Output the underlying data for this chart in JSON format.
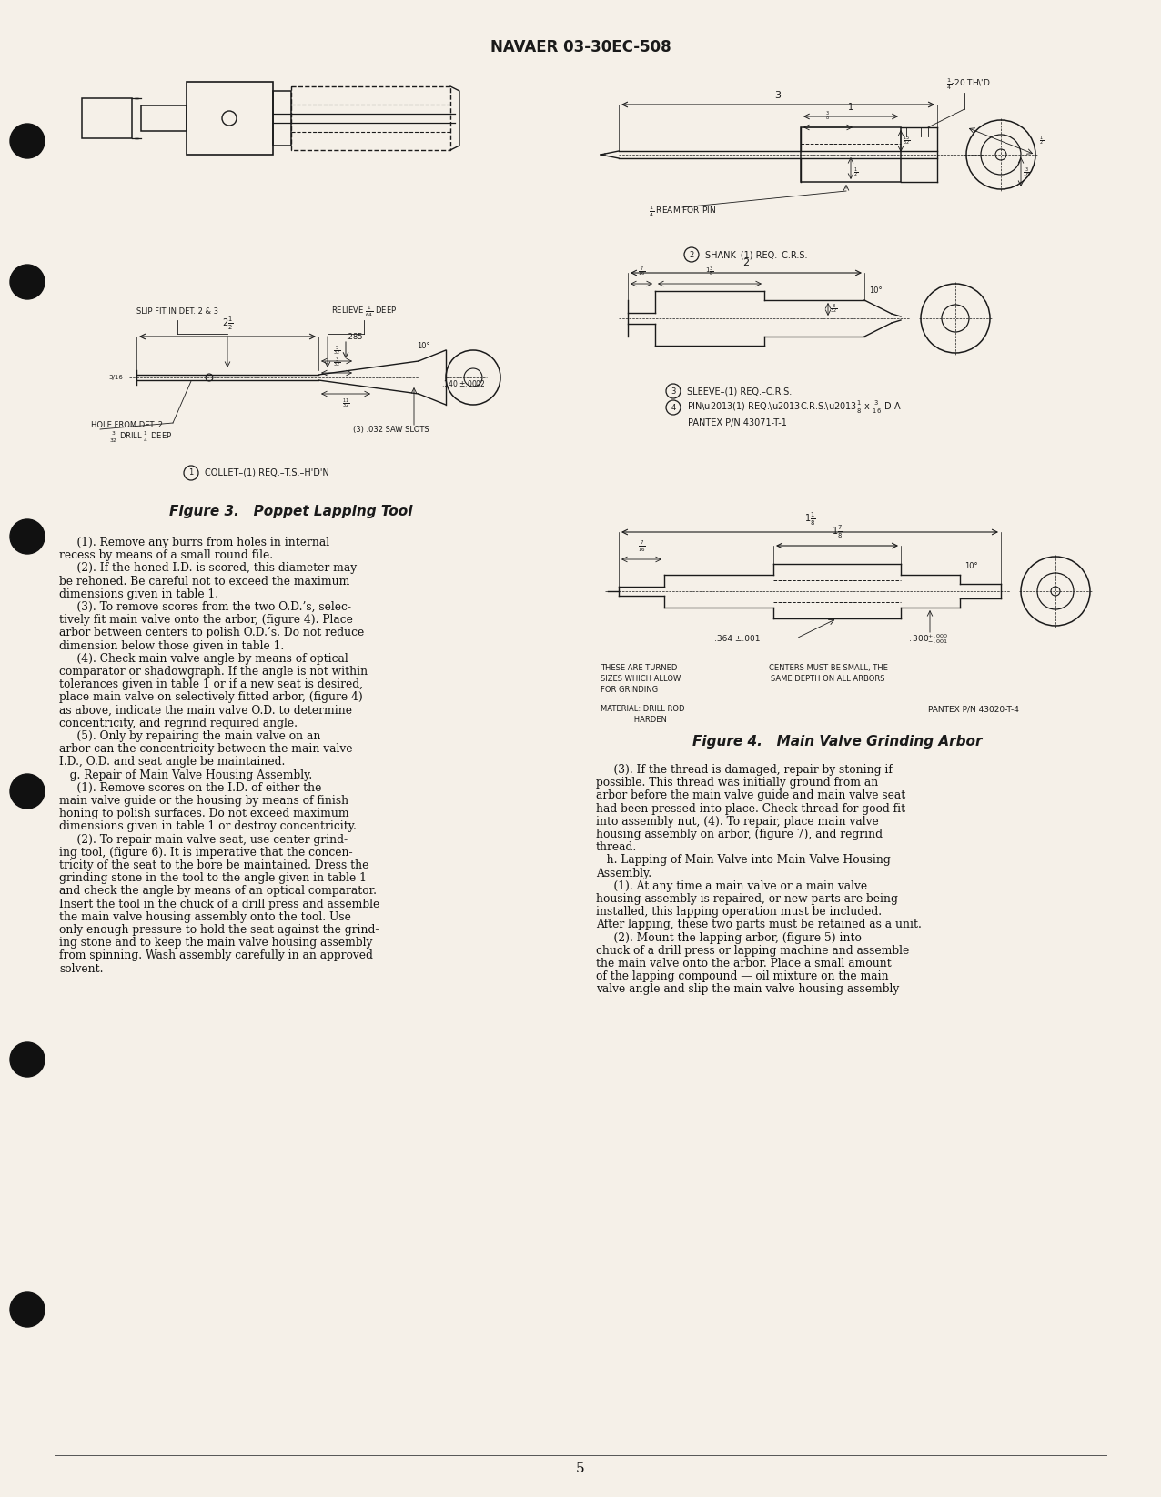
{
  "page_bg_color": "#f5f0e8",
  "header_text": "NAVAER 03-30EC-508",
  "page_number": "5",
  "fig3_caption": "Figure 3.   Poppet Lapping Tool",
  "fig4_caption": "Figure 4.   Main Valve Grinding Arbor",
  "margin_dots_y": [
    155,
    310,
    590,
    870,
    1165,
    1440
  ],
  "col1_lines": [
    "     (1). Remove any burrs from holes in internal",
    "recess by means of a small round file.",
    "     (2). If the honed I.D. is scored, this diameter may",
    "be rehoned. Be careful not to exceed the maximum",
    "dimensions given in table 1.",
    "     (3). To remove scores from the two O.D.’s, selec-",
    "tively fit main valve onto the arbor, (figure 4). Place",
    "arbor between centers to polish O.D.’s. Do not reduce",
    "dimension below those given in table 1.",
    "     (4). Check main valve angle by means of optical",
    "comparator or shadowgraph. If the angle is not within",
    "tolerances given in table 1 or if a new seat is desired,",
    "place main valve on selectively fitted arbor, (figure 4)",
    "as above, indicate the main valve O.D. to determine",
    "concentricity, and regrind required angle.",
    "     (5). Only by repairing the main valve on an",
    "arbor can the concentricity between the main valve",
    "I.D., O.D. and seat angle be maintained.",
    "   g. Repair of Main Valve Housing Assembly.",
    "     (1). Remove scores on the I.D. of either the",
    "main valve guide or the housing by means of finish",
    "honing to polish surfaces. Do not exceed maximum",
    "dimensions given in table 1 or destroy concentricity.",
    "     (2). To repair main valve seat, use center grind-",
    "ing tool, (figure 6). It is imperative that the concen-",
    "tricity of the seat to the bore be maintained. Dress the",
    "grinding stone in the tool to the angle given in table 1",
    "and check the angle by means of an optical comparator.",
    "Insert the tool in the chuck of a drill press and assemble",
    "the main valve housing assembly onto the tool. Use",
    "only enough pressure to hold the seat against the grind-",
    "ing stone and to keep the main valve housing assembly",
    "from spinning. Wash assembly carefully in an approved",
    "solvent."
  ],
  "col2_lines": [
    "     (3). If the thread is damaged, repair by stoning if",
    "possible. This thread was initially ground from an",
    "arbor before the main valve guide and main valve seat",
    "had been pressed into place. Check thread for good fit",
    "into assembly nut, (4). To repair, place main valve",
    "housing assembly on arbor, (figure 7), and regrind",
    "thread.",
    "   h. Lapping of Main Valve into Main Valve Housing",
    "Assembly.",
    "     (1). At any time a main valve or a main valve",
    "housing assembly is repaired, or new parts are being",
    "installed, this lapping operation must be included.",
    "After lapping, these two parts must be retained as a unit.",
    "     (2). Mount the lapping arbor, (figure 5) into",
    "chuck of a drill press or lapping machine and assemble",
    "the main valve onto the arbor. Place a small amount",
    "of the lapping compound — oil mixture on the main",
    "valve angle and slip the main valve housing assembly"
  ]
}
